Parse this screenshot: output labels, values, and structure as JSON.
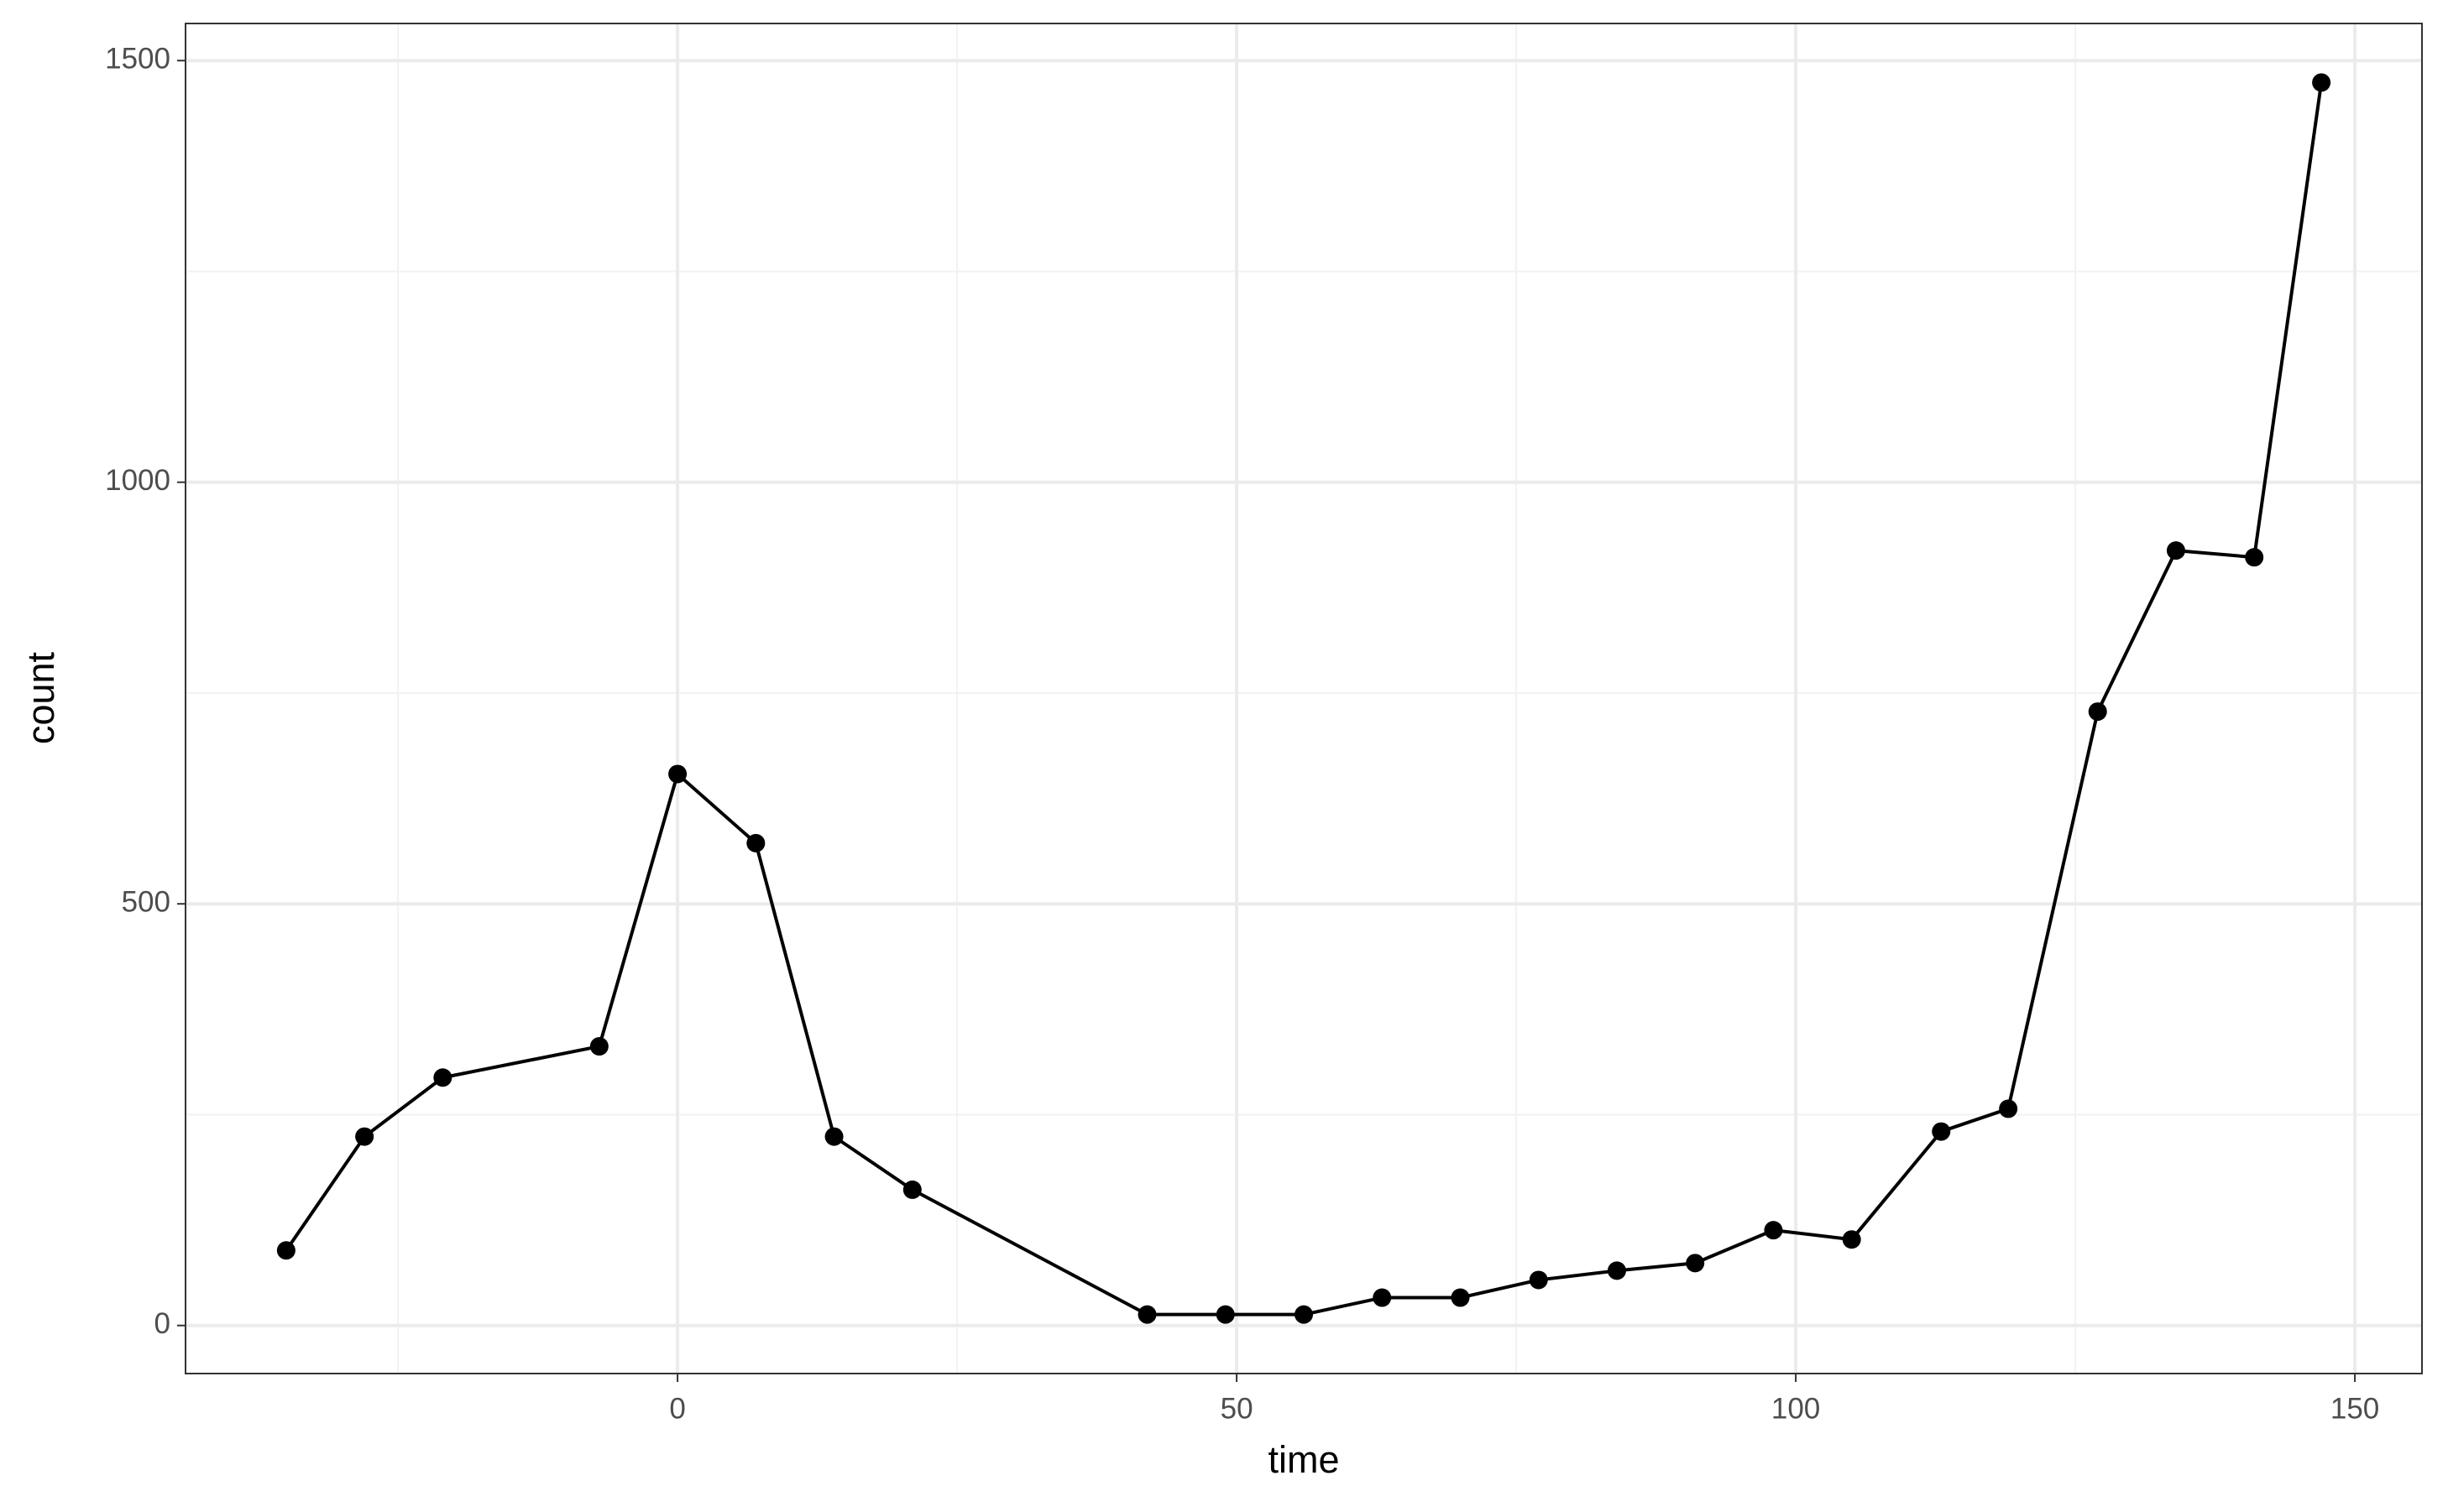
{
  "chart_data": {
    "type": "line",
    "x_label": "time",
    "y_label": "count",
    "x": [
      -35,
      -28,
      -21,
      -7,
      0,
      7,
      14,
      21,
      42,
      49,
      56,
      63,
      70,
      77,
      84,
      91,
      98,
      105,
      113,
      119,
      127,
      134,
      141,
      147
    ],
    "values": [
      89,
      224,
      294,
      331,
      654,
      572,
      224,
      161,
      13,
      13,
      13,
      33,
      33,
      54,
      65,
      74,
      113,
      102,
      230,
      257,
      728,
      919,
      911,
      1474
    ],
    "color": "#000000",
    "xlim": [
      -44,
      156
    ],
    "ylim": [
      -57,
      1544
    ],
    "xticks": [
      0,
      50,
      100,
      150
    ],
    "yticks": [
      0,
      500,
      1000,
      1500
    ],
    "grid": true,
    "markers": true
  }
}
